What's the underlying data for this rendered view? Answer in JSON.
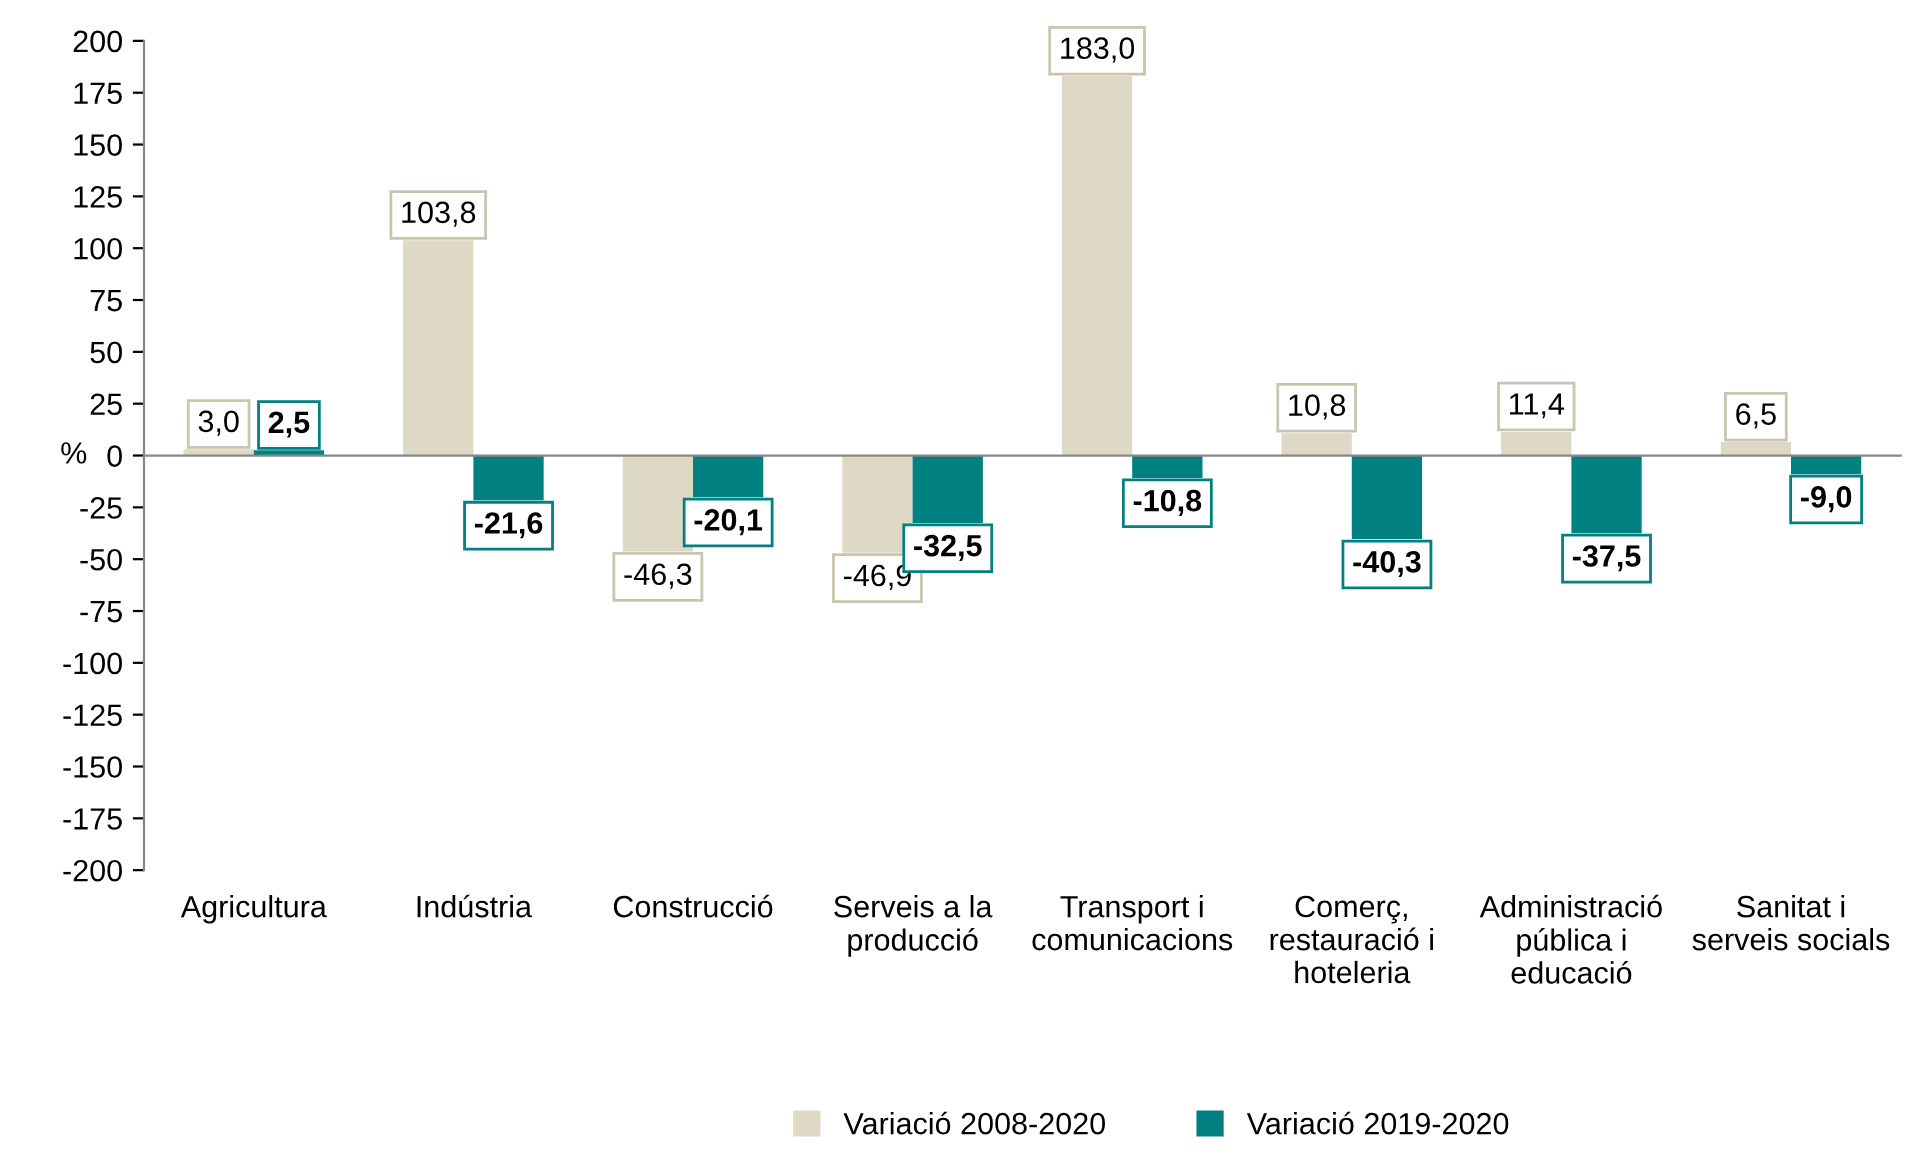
{
  "chart_data": {
    "type": "bar",
    "ylabel": "%",
    "categories": [
      "Agricultura",
      "Indústria",
      "Construcció",
      "Serveis a la\nproducció",
      "Transport i\ncomunicacions",
      "Comerç,\nrestauració i\nhoteleria",
      "Administració\npública i\neducació",
      "Sanitat i\nserveis socials"
    ],
    "series": [
      {
        "name": "Variació 2008-2020",
        "color": "#ddd9c4",
        "values": [
          3.0,
          103.8,
          -46.3,
          -46.9,
          183.0,
          10.8,
          11.4,
          6.5
        ],
        "value_labels": [
          "3,0",
          "103,8",
          "-46,3",
          "-46,9",
          "183,0",
          "10,8",
          "11,4",
          "6,5"
        ]
      },
      {
        "name": "Variació 2019-2020",
        "color": "#008080",
        "values": [
          2.5,
          -21.6,
          -20.1,
          -32.5,
          -10.8,
          -40.3,
          -37.5,
          -9.0
        ],
        "value_labels": [
          "2,5",
          "-21,6",
          "-20,1",
          "-32,5",
          "-10,8",
          "-40,3",
          "-37,5",
          "-9,0"
        ]
      }
    ],
    "ylim": [
      -200,
      200
    ],
    "yticks": [
      -200,
      -175,
      -150,
      -125,
      -100,
      -75,
      -50,
      -25,
      0,
      25,
      50,
      75,
      100,
      125,
      150,
      175,
      200
    ],
    "legend": "bottom"
  }
}
